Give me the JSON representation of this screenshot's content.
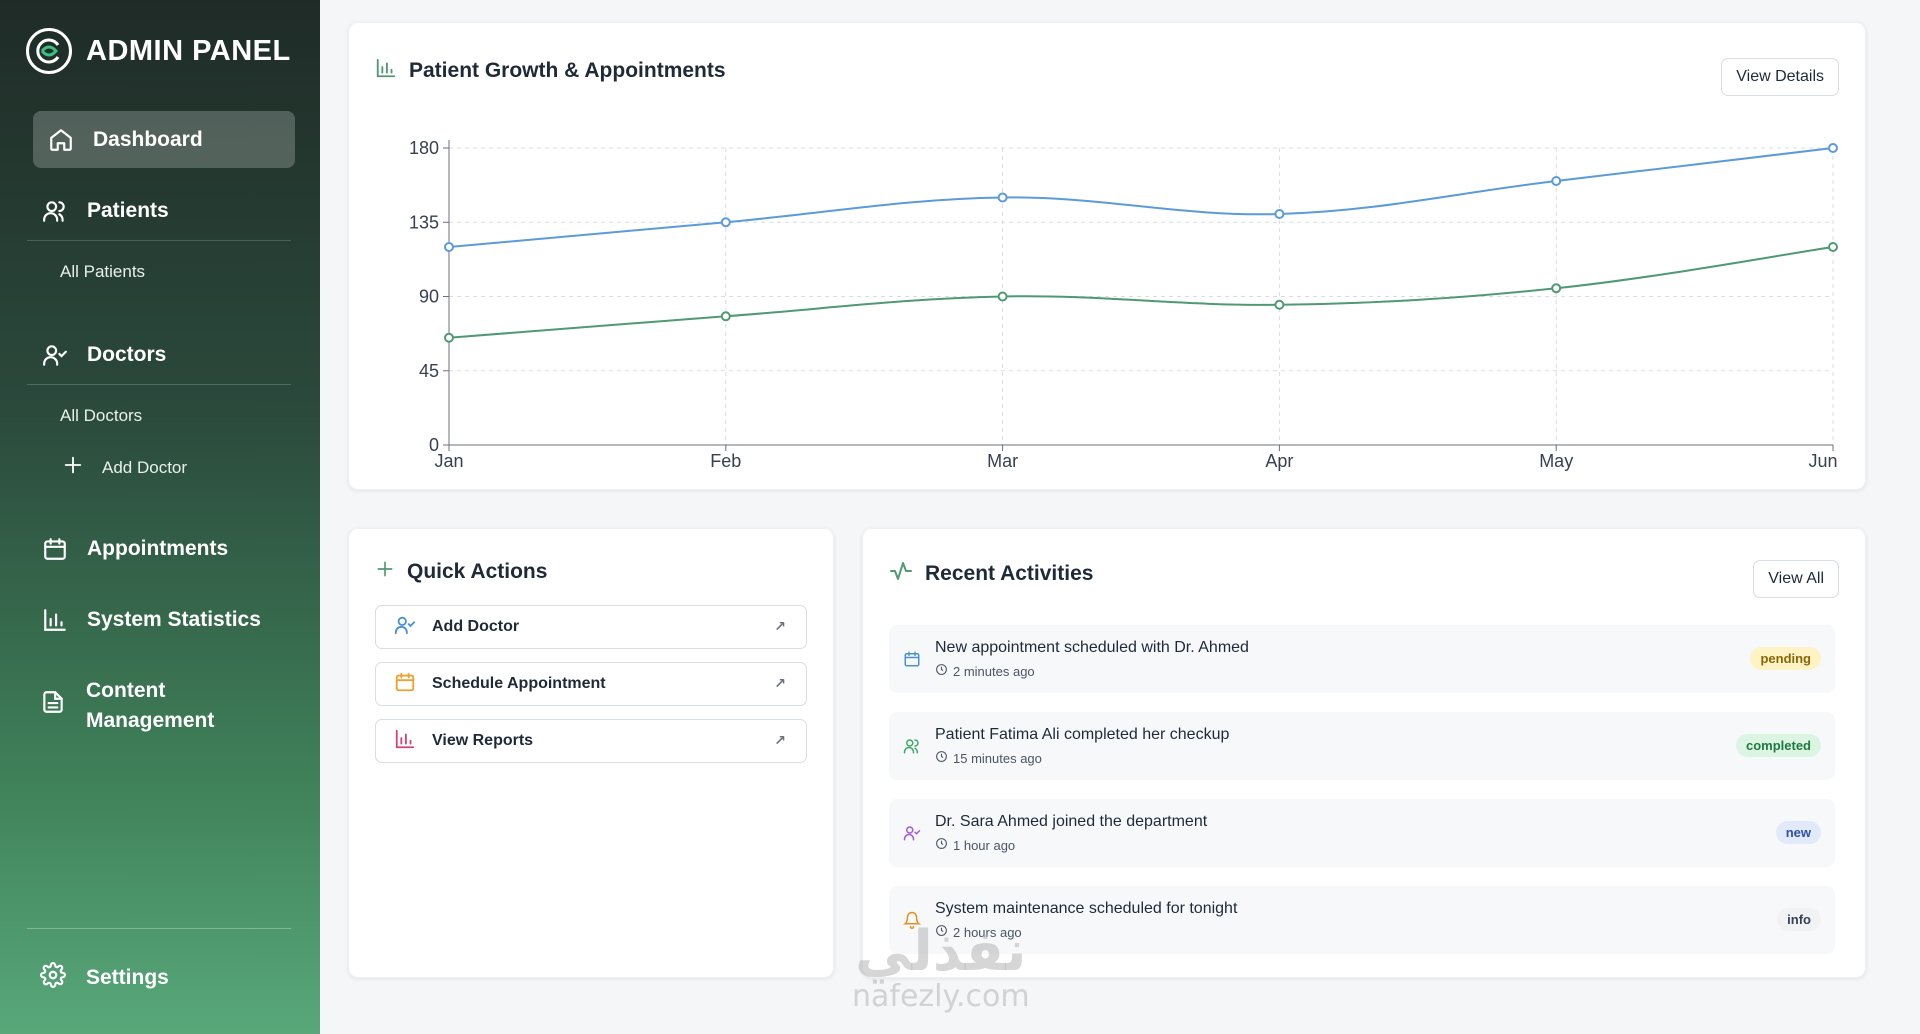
{
  "brand": {
    "title": "ADMIN PANEL"
  },
  "sidebar": {
    "dashboard": "Dashboard",
    "patients": "Patients",
    "all_patients": "All Patients",
    "doctors": "Doctors",
    "all_doctors": "All Doctors",
    "add_doctor": "Add Doctor",
    "appointments": "Appointments",
    "system_statistics": "System Statistics",
    "content_management": [
      "Content",
      "Management"
    ],
    "settings": "Settings"
  },
  "growth_card": {
    "title": "Patient Growth & Appointments",
    "button": "View Details"
  },
  "chart_data": {
    "type": "line",
    "categories": [
      "Jan",
      "Feb",
      "Mar",
      "Apr",
      "May",
      "Jun"
    ],
    "series": [
      {
        "values": [
          120,
          135,
          150,
          140,
          160,
          180
        ],
        "color": "#5b9bd9"
      },
      {
        "values": [
          65,
          78,
          90,
          85,
          95,
          120
        ],
        "color": "#4f9a72"
      }
    ],
    "ylim": [
      0,
      180
    ],
    "yticks": [
      0,
      45,
      90,
      135,
      180
    ],
    "grid": true,
    "xlabel": "",
    "ylabel": ""
  },
  "quick_actions": {
    "title": "Quick Actions",
    "items": [
      {
        "label": "Add Doctor",
        "icon": "user-check-icon",
        "color": "#4a90d9"
      },
      {
        "label": "Schedule Appointment",
        "icon": "calendar-icon",
        "color": "#f0a030"
      },
      {
        "label": "View Reports",
        "icon": "bar-chart-icon",
        "color": "#d2447a"
      }
    ]
  },
  "recent_activities": {
    "title": "Recent Activities",
    "button": "View All",
    "items": [
      {
        "title": "New appointment scheduled with Dr. Ahmed",
        "time": "2 minutes ago",
        "status": "pending",
        "icon": "calendar-icon"
      },
      {
        "title": "Patient Fatima Ali completed her checkup",
        "time": "15 minutes ago",
        "status": "completed",
        "icon": "users-icon"
      },
      {
        "title": "Dr. Sara Ahmed joined the department",
        "time": "1 hour ago",
        "status": "new",
        "icon": "user-check-icon"
      },
      {
        "title": "System maintenance scheduled for tonight",
        "time": "2 hours ago",
        "status": "info",
        "icon": "bell-icon"
      }
    ]
  },
  "watermark": {
    "arabic": "نفذلي",
    "latin": "nafezly.com"
  }
}
